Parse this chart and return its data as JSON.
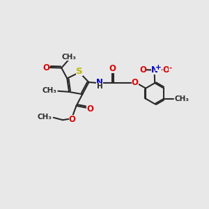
{
  "bg_color": "#e8e8e8",
  "bond_color": "#2a2a2a",
  "bond_width": 1.5,
  "atom_colors": {
    "S": "#b8b800",
    "O": "#dd0000",
    "N": "#0000cc",
    "C": "#2a2a2a",
    "H": "#2a2a2a"
  },
  "font_size": 8.5,
  "font_size_small": 7.5,
  "xlim": [
    0,
    10
  ],
  "ylim": [
    0,
    10
  ]
}
